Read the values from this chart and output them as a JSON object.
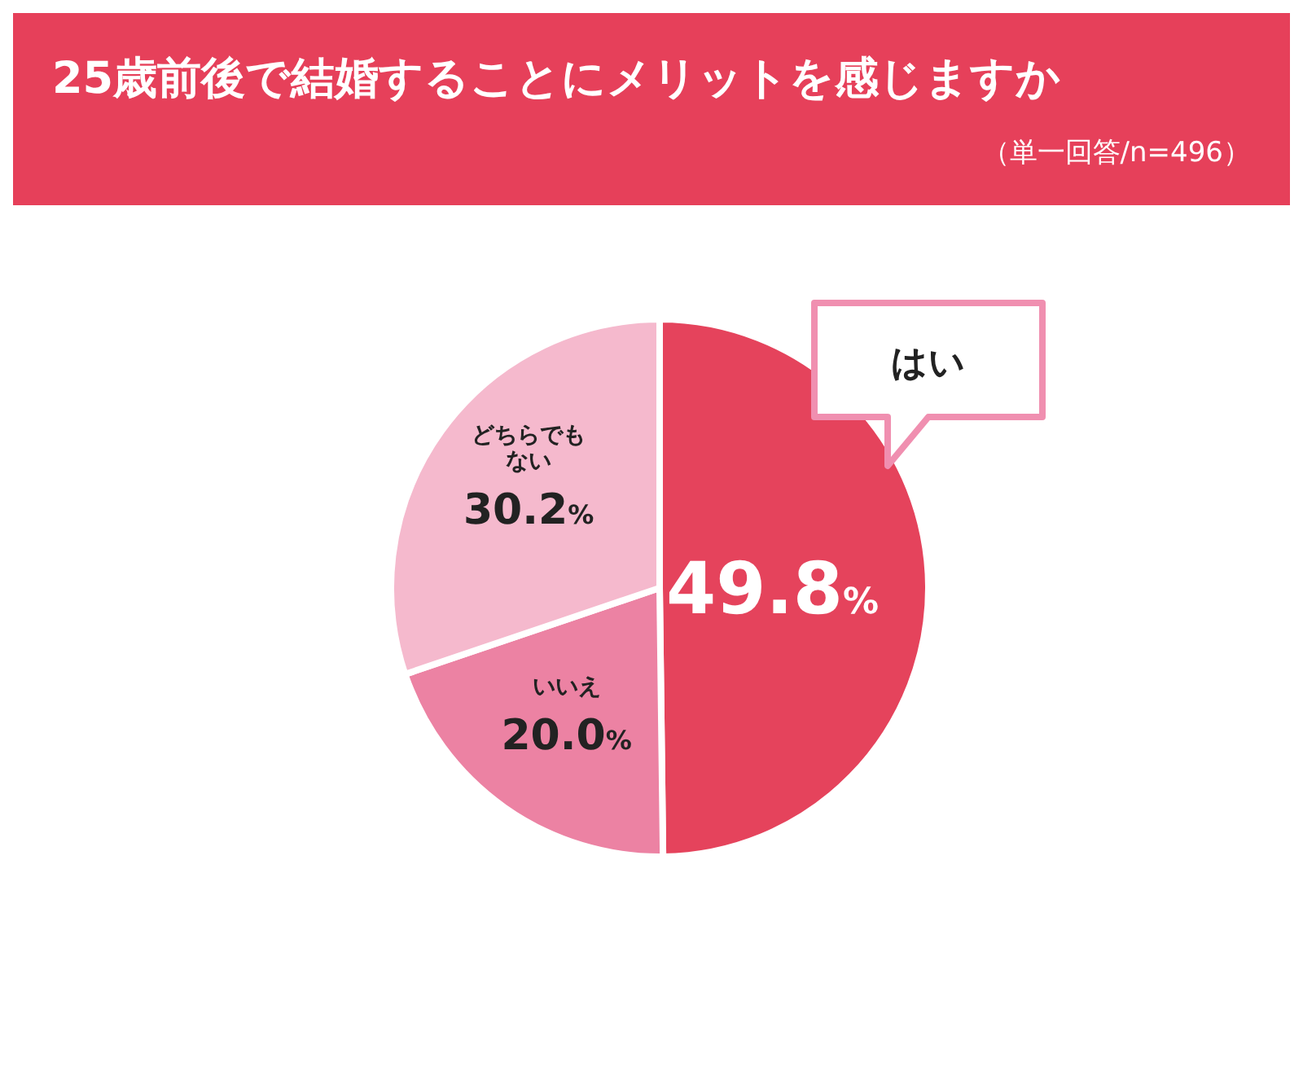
{
  "chart_data": {
    "type": "pie",
    "title": "25歳前後で結婚することにメリットを感じますか",
    "subtitle": "（単一回答/n=496）",
    "categories": [
      "はい",
      "いいえ",
      "どちらでもない"
    ],
    "values": [
      49.8,
      20.0,
      30.2
    ],
    "colors": [
      "#e5435c",
      "#ec82a3",
      "#f5b9cd"
    ],
    "value_labels": [
      "49.8%",
      "20.0%",
      "30.2%"
    ]
  }
}
